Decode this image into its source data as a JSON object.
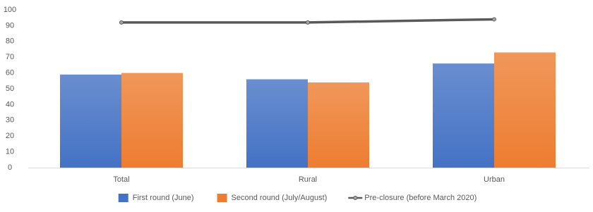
{
  "chart_data": {
    "type": "bar",
    "categories": [
      "Total",
      "Rural",
      "Urban"
    ],
    "series": [
      {
        "name": "First round (June)",
        "color": "#4472c4",
        "values": [
          59,
          56,
          66
        ]
      },
      {
        "name": "Second round (July/August)",
        "color": "#ed7d31",
        "values": [
          60,
          54,
          73
        ]
      },
      {
        "name": "Pre-closure (before March 2020)",
        "color": "#595959",
        "type": "line",
        "values": [
          92,
          92,
          94
        ]
      }
    ],
    "ylim": [
      0,
      100
    ],
    "yticks": [
      0,
      10,
      20,
      30,
      40,
      50,
      60,
      70,
      80,
      90,
      100
    ],
    "grid": false,
    "legend": "bottom"
  }
}
